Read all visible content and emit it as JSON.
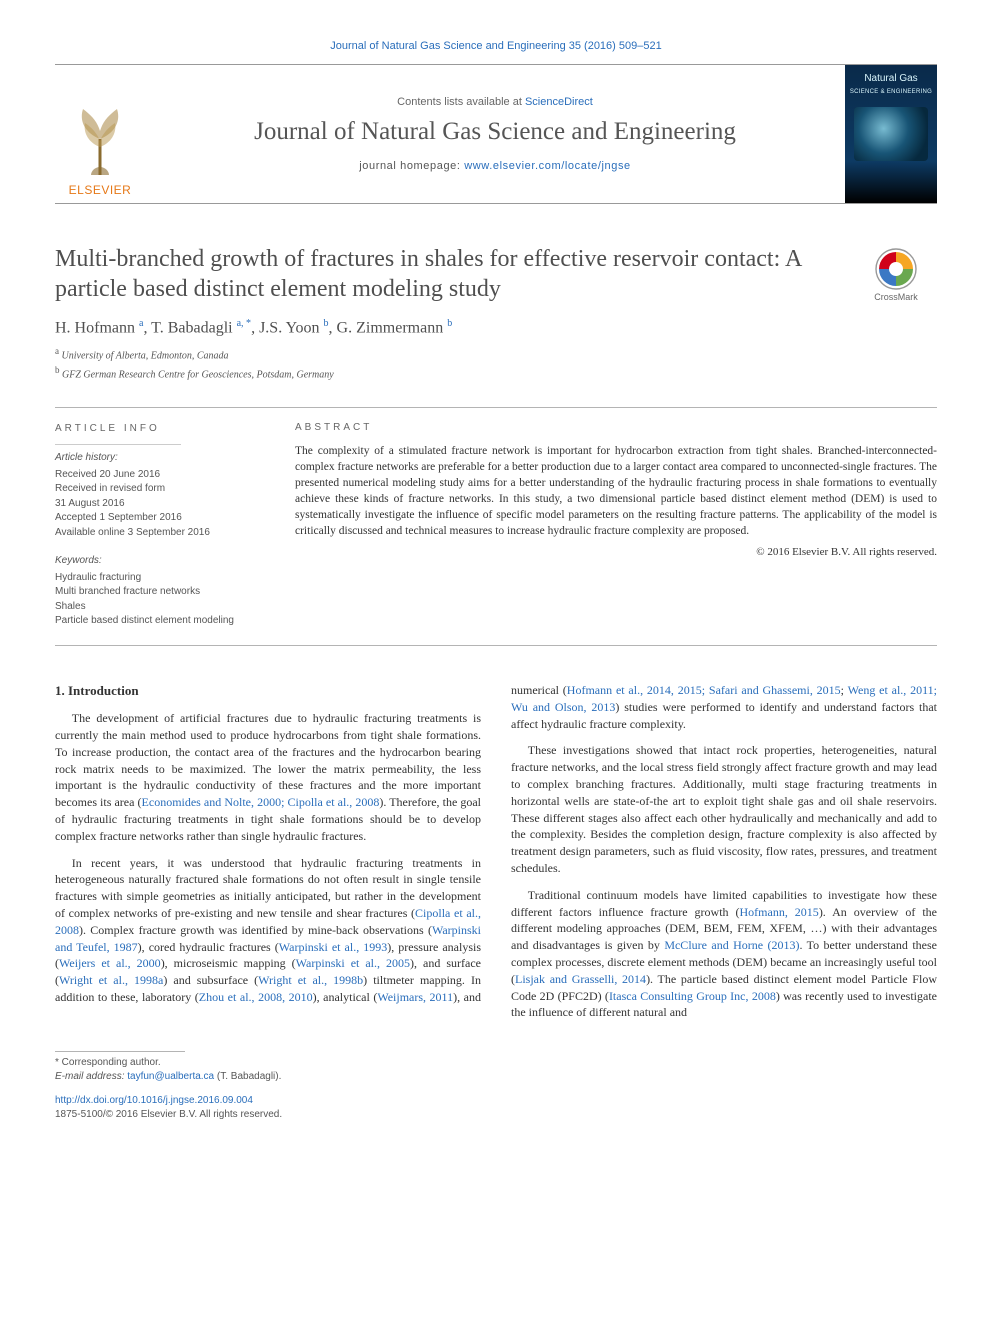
{
  "top_link": "Journal of Natural Gas Science and Engineering 35 (2016) 509–521",
  "header": {
    "contents_prefix": "Contents lists available at ",
    "contents_link": "ScienceDirect",
    "journal_title": "Journal of Natural Gas Science and Engineering",
    "homepage_prefix": "journal homepage: ",
    "homepage_url": "www.elsevier.com/locate/jngse",
    "elsevier_label": "ELSEVIER",
    "cover_label_line1": "Natural Gas",
    "cover_label_line2": "SCIENCE & ENGINEERING"
  },
  "article": {
    "title": "Multi-branched growth of fractures in shales for effective reservoir contact: A particle based distinct element modeling study",
    "crossmark_label": "CrossMark",
    "authors_html": "H. Hofmann <sup>a</sup>, T. Babadagli <sup>a, *</sup>, J.S. Yoon <sup>b</sup>, G. Zimmermann <sup>b</sup>",
    "affiliations": {
      "a": "a University of Alberta, Edmonton, Canada",
      "b": "b GFZ German Research Centre for Geosciences, Potsdam, Germany"
    }
  },
  "info": {
    "article_info_head": "article info",
    "history_title": "Article history:",
    "history_lines": [
      "Received 20 June 2016",
      "Received in revised form",
      "31 August 2016",
      "Accepted 1 September 2016",
      "Available online 3 September 2016"
    ],
    "keywords_title": "Keywords:",
    "keywords": [
      "Hydraulic fracturing",
      "Multi branched fracture networks",
      "Shales",
      "Particle based distinct element modeling"
    ]
  },
  "abstract": {
    "head": "abstract",
    "body": "The complexity of a stimulated fracture network is important for hydrocarbon extraction from tight shales. Branched-interconnected-complex fracture networks are preferable for a better production due to a larger contact area compared to unconnected-single fractures. The presented numerical modeling study aims for a better understanding of the hydraulic fracturing process in shale formations to eventually achieve these kinds of fracture networks. In this study, a two dimensional particle based distinct element method (DEM) is used to systematically investigate the influence of specific model parameters on the resulting fracture patterns. The applicability of the model is critically discussed and technical measures to increase hydraulic fracture complexity are proposed.",
    "copyright": "© 2016 Elsevier B.V. All rights reserved."
  },
  "body": {
    "section_head": "1. Introduction",
    "p1_a": "The development of artificial fractures due to hydraulic fracturing treatments is currently the main method used to produce hydrocarbons from tight shale formations. To increase production, the contact area of the fractures and the hydrocarbon bearing rock matrix needs to be maximized. The lower the matrix permeability, the less important is the hydraulic conductivity of these fractures and the more important becomes its area (",
    "p1_ref1": "Economides and Nolte, 2000; Cipolla et al., 2008",
    "p1_b": "). Therefore, the goal of hydraulic fracturing treatments in tight shale formations should be to develop complex fracture networks rather than single hydraulic fractures.",
    "p2_a": "In recent years, it was understood that hydraulic fracturing treatments in heterogeneous naturally fractured shale formations do not often result in single tensile fractures with simple geometries as initially anticipated, but rather in the development of complex networks of pre-existing and new tensile and shear fractures (",
    "p2_ref1": "Cipolla et al., 2008",
    "p2_b": "). Complex fracture growth was identified by mine-back observations (",
    "p2_ref2": "Warpinski and Teufel, 1987",
    "p2_c": "), cored hydraulic fractures (",
    "p2_ref3": "Warpinski et al., 1993",
    "p2_d": "), pressure analysis (",
    "p2_ref4": "Weijers et al., 2000",
    "p2_e": "), microseismic mapping (",
    "p2_ref5": "Warpinski et al., 2005",
    "p2_f": "), and surface (",
    "p2_ref6": "Wright et al., 1998a",
    "p2_g": ") and subsurface (",
    "p2_ref7": "Wright et al., 1998b",
    "p2_h": ") tiltmeter mapping. In addition to these, laboratory (",
    "p2_ref8": "Zhou et al., 2008, 2010",
    "p2_i": "), analytical (",
    "p2_ref9": "Weijmars, 2011",
    "p2_j": "), and numerical (",
    "p2_ref10": "Hofmann et al., 2014, 2015; Safari and Ghassemi, 2015",
    "p2_k": "; ",
    "p2_ref11": "Weng et al., 2011; Wu and Olson, 2013",
    "p2_l": ") studies were performed to identify and understand factors that affect hydraulic fracture complexity.",
    "p3": "These investigations showed that intact rock properties, heterogeneities, natural fracture networks, and the local stress field strongly affect fracture growth and may lead to complex branching fractures. Additionally, multi stage fracturing treatments in horizontal wells are state-of-the art to exploit tight shale gas and oil shale reservoirs. These different stages also affect each other hydraulically and mechanically and add to the complexity. Besides the completion design, fracture complexity is also affected by treatment design parameters, such as fluid viscosity, flow rates, pressures, and treatment schedules.",
    "p4_a": "Traditional continuum models have limited capabilities to investigate how these different factors influence fracture growth (",
    "p4_ref1": "Hofmann, 2015",
    "p4_b": "). An overview of the different modeling approaches (DEM, BEM, FEM, XFEM, …) with their advantages and disadvantages is given by ",
    "p4_ref2": "McClure and Horne (2013)",
    "p4_c": ". To better understand these complex processes, discrete element methods (DEM) became an increasingly useful tool (",
    "p4_ref3": "Lisjak and Grasselli, 2014",
    "p4_d": "). The particle based distinct element model Particle Flow Code 2D (PFC2D) (",
    "p4_ref4": "Itasca Consulting Group Inc, 2008",
    "p4_e": ") was recently used to investigate the influence of different natural and"
  },
  "footer": {
    "corr": "* Corresponding author.",
    "email_label": "E-mail address: ",
    "email": "tayfun@ualberta.ca",
    "email_suffix": " (T. Babadagli).",
    "doi": "http://dx.doi.org/10.1016/j.jngse.2016.09.004",
    "issn_line": "1875-5100/© 2016 Elsevier B.V. All rights reserved."
  },
  "colors": {
    "link": "#2a6ebb",
    "elsevier_orange": "#e67817",
    "rule": "#b4b4b4",
    "crossmark_red": "#d0021b",
    "crossmark_yellow": "#f6a623",
    "crossmark_blue": "#3b78c4",
    "crossmark_green": "#6aa84f"
  }
}
